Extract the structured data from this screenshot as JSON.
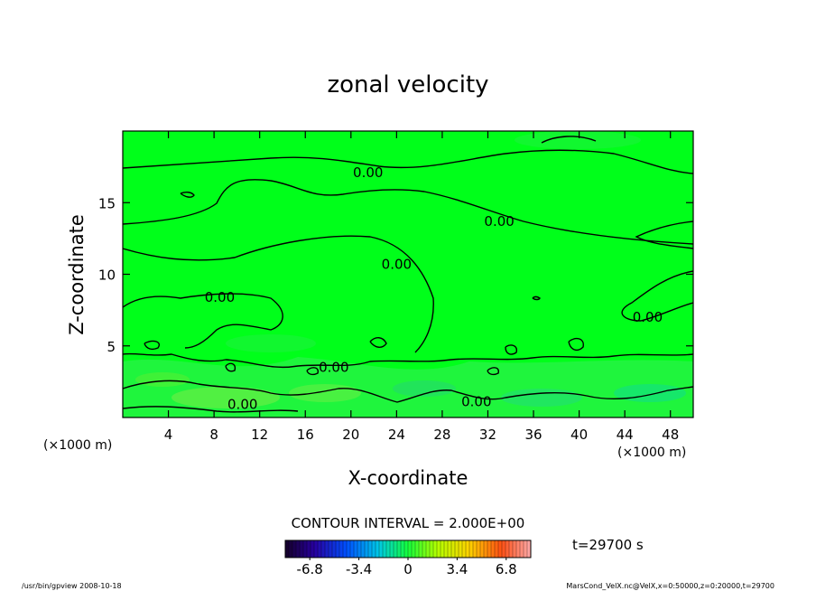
{
  "chart_data": {
    "type": "heatmap",
    "title": "zonal velocity",
    "xlabel": "X-coordinate",
    "ylabel": "Z-coordinate",
    "x_unit_left": "(×1000 m)",
    "x_unit_right": "(×1000 m)",
    "xlim": [
      0,
      50
    ],
    "ylim": [
      0,
      20
    ],
    "x_ticks": [
      4,
      8,
      12,
      16,
      20,
      24,
      28,
      32,
      36,
      40,
      44,
      48
    ],
    "y_ticks": [
      5,
      10,
      15
    ],
    "contour_interval_text": "CONTOUR INTERVAL = 2.000E+00",
    "contour_labels": [
      {
        "text": "0.00",
        "x": 21.5,
        "y": 17.1
      },
      {
        "text": "0.00",
        "x": 33.0,
        "y": 13.7
      },
      {
        "text": "0.00",
        "x": 24.0,
        "y": 10.7
      },
      {
        "text": "0.00",
        "x": 8.5,
        "y": 8.4
      },
      {
        "text": "0.00",
        "x": 46.0,
        "y": 7.0
      },
      {
        "text": "0.00",
        "x": 18.5,
        "y": 3.5
      },
      {
        "text": "0.00",
        "x": 10.5,
        "y": 0.9
      },
      {
        "text": "0.00",
        "x": 31.0,
        "y": 1.1
      }
    ],
    "colorbar": {
      "min": -8.5,
      "max": 8.5,
      "tick_values": [
        -6.8,
        -3.4,
        0,
        3.4,
        6.8
      ],
      "tick_labels": [
        "-6.8",
        "-3.4",
        "0",
        "3.4",
        "6.8"
      ]
    },
    "time_text": "t=29700 s"
  },
  "footer": {
    "left": "/usr/bin/gpview   2008-10-18",
    "right": "MarsCond_VelX.nc@VelX,x=0:50000,z=0:20000,t=29700"
  }
}
